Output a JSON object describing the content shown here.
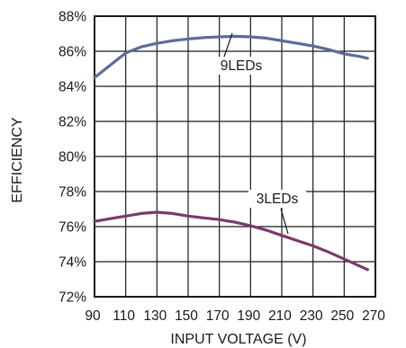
{
  "chart_data": {
    "type": "line",
    "title": "",
    "xlabel": "INPUT VOLTAGE (V)",
    "ylabel": "EFFICIENCY",
    "xlim": [
      90,
      270
    ],
    "ylim": [
      72,
      88
    ],
    "x_ticks": [
      "90",
      "110",
      "130",
      "150",
      "170",
      "190",
      "210",
      "230",
      "250",
      "270"
    ],
    "y_ticks": [
      "72%",
      "74%",
      "76%",
      "78%",
      "80%",
      "82%",
      "84%",
      "86%",
      "88%"
    ],
    "grid": true,
    "series": [
      {
        "name": "9LEDs",
        "color": "#5e6a98",
        "x": [
          90,
          100,
          110,
          120,
          130,
          140,
          150,
          160,
          170,
          180,
          190,
          200,
          210,
          220,
          230,
          240,
          250,
          260,
          265
        ],
        "y": [
          84.5,
          85.2,
          85.9,
          86.25,
          86.45,
          86.6,
          86.7,
          86.78,
          86.82,
          86.85,
          86.82,
          86.75,
          86.6,
          86.45,
          86.3,
          86.1,
          85.85,
          85.7,
          85.6
        ]
      },
      {
        "name": "3LEDs",
        "color": "#7a3a6a",
        "x": [
          90,
          100,
          110,
          120,
          130,
          140,
          150,
          160,
          170,
          180,
          190,
          200,
          210,
          220,
          230,
          240,
          250,
          260,
          265
        ],
        "y": [
          76.3,
          76.45,
          76.6,
          76.75,
          76.82,
          76.75,
          76.6,
          76.5,
          76.4,
          76.25,
          76.05,
          75.8,
          75.5,
          75.2,
          74.9,
          74.55,
          74.15,
          73.75,
          73.55
        ]
      }
    ]
  }
}
